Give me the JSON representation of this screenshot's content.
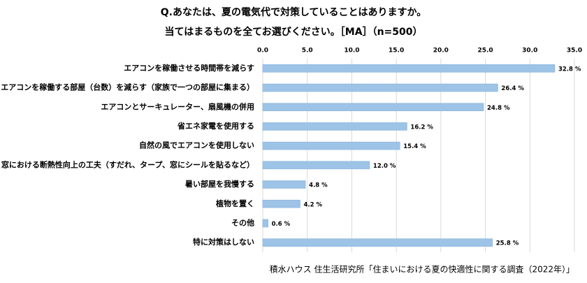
{
  "chart_data": {
    "type": "bar",
    "orientation": "horizontal",
    "title": "Q.あなたは、夏の電気代で対策していることはありますか。",
    "subtitle": "当てはまるものを全てお選びください。［MA］（n=500）",
    "source": "積水ハウス 住生活研究所「住まいにおける夏の快適性に関する調査（2022年）」",
    "categories": [
      "エアコンを稼働させる時間帯を減らす",
      "エアコンを稼働する部屋（台数）を減らす（家族で一つの部屋に集まる）",
      "エアコンとサーキュレーター、扇風機の併用",
      "省エネ家電を使用する",
      "自然の風でエアコンを使用しない",
      "窓における断熱性向上の工夫（すだれ、タープ、窓にシールを貼るなど）",
      "暑い部屋を我慢する",
      "植物を置く",
      "その他",
      "特に対策はしない"
    ],
    "values": [
      32.8,
      26.4,
      24.8,
      16.2,
      15.4,
      12.0,
      4.8,
      4.2,
      0.6,
      25.8
    ],
    "value_labels": [
      "32.8 %",
      "26.4 %",
      "24.8 %",
      "16.2 %",
      "15.4 %",
      "12.0 %",
      "4.8 %",
      "4.2 %",
      "0.6 %",
      "25.8 %"
    ],
    "color": "#9dc3e6",
    "xlim": [
      0,
      35
    ],
    "xticks": [
      {
        "value": 0,
        "label": "0.0"
      },
      {
        "value": 5,
        "label": "5.0"
      },
      {
        "value": 10,
        "label": "10.0"
      },
      {
        "value": 15,
        "label": "15.0"
      },
      {
        "value": 20,
        "label": "20.0"
      },
      {
        "value": 25,
        "label": "25.0"
      },
      {
        "value": 30,
        "label": "30.0"
      },
      {
        "value": 35,
        "label": "35.0"
      }
    ],
    "grid": true
  }
}
